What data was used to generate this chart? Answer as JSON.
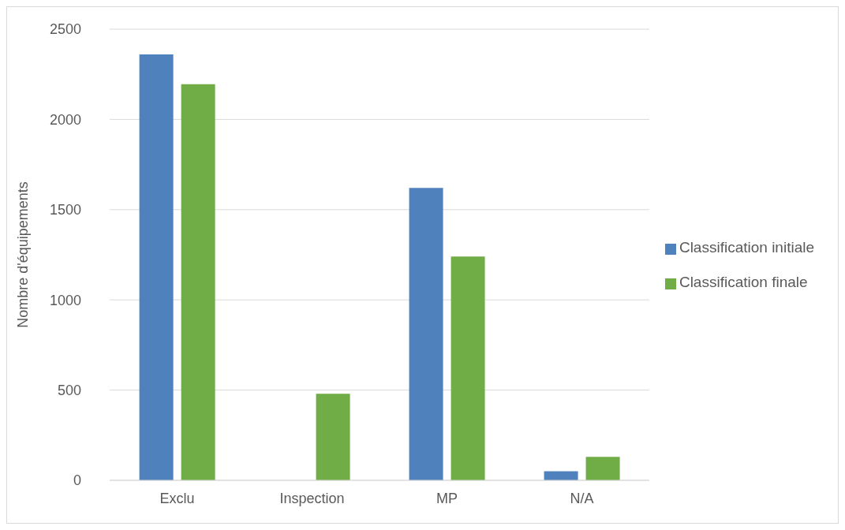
{
  "chart_data": {
    "type": "bar",
    "ylabel": "Nombre d'équipements",
    "categories": [
      "Exclu",
      "Inspection",
      "MP",
      "N/A"
    ],
    "series": [
      {
        "name": "Classification initiale",
        "color": "#4f81bd",
        "values": [
          2360,
          0,
          1620,
          50
        ]
      },
      {
        "name": "Classification finale",
        "color": "#70ad47",
        "values": [
          2195,
          480,
          1240,
          130
        ]
      }
    ],
    "ylim": [
      0,
      2500
    ],
    "yticks": [
      0,
      500,
      1000,
      1500,
      2000,
      2500
    ],
    "grid": "y",
    "legend": "right"
  }
}
